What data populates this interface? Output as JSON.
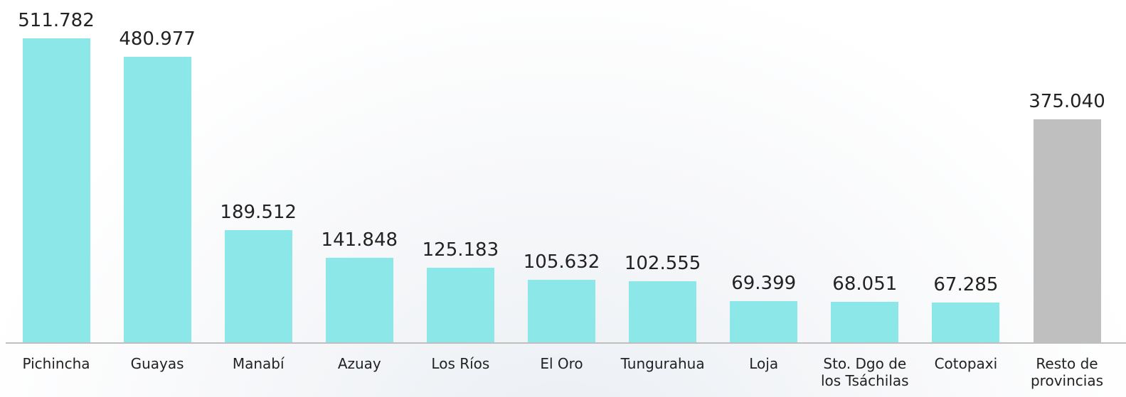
{
  "chart_data": {
    "type": "bar",
    "categories": [
      "Pichincha",
      "Guayas",
      "Manabí",
      "Azuay",
      "Los Ríos",
      "El Oro",
      "Tungurahua",
      "Loja",
      "Sto. Dgo de los Tsáchilas",
      "Cotopaxi",
      "Resto de provincias"
    ],
    "values": [
      511782,
      480977,
      189512,
      141848,
      125183,
      105632,
      102555,
      69399,
      68051,
      67285,
      375040
    ],
    "value_labels": [
      "511.782",
      "480.977",
      "189.512",
      "141.848",
      "125.183",
      "105.632",
      "102.555",
      "69.399",
      "68.051",
      "67.285",
      "375.040"
    ],
    "colors": [
      "#8ce8e8",
      "#8ce8e8",
      "#8ce8e8",
      "#8ce8e8",
      "#8ce8e8",
      "#8ce8e8",
      "#8ce8e8",
      "#8ce8e8",
      "#8ce8e8",
      "#8ce8e8",
      "#bfbfbf"
    ]
  }
}
